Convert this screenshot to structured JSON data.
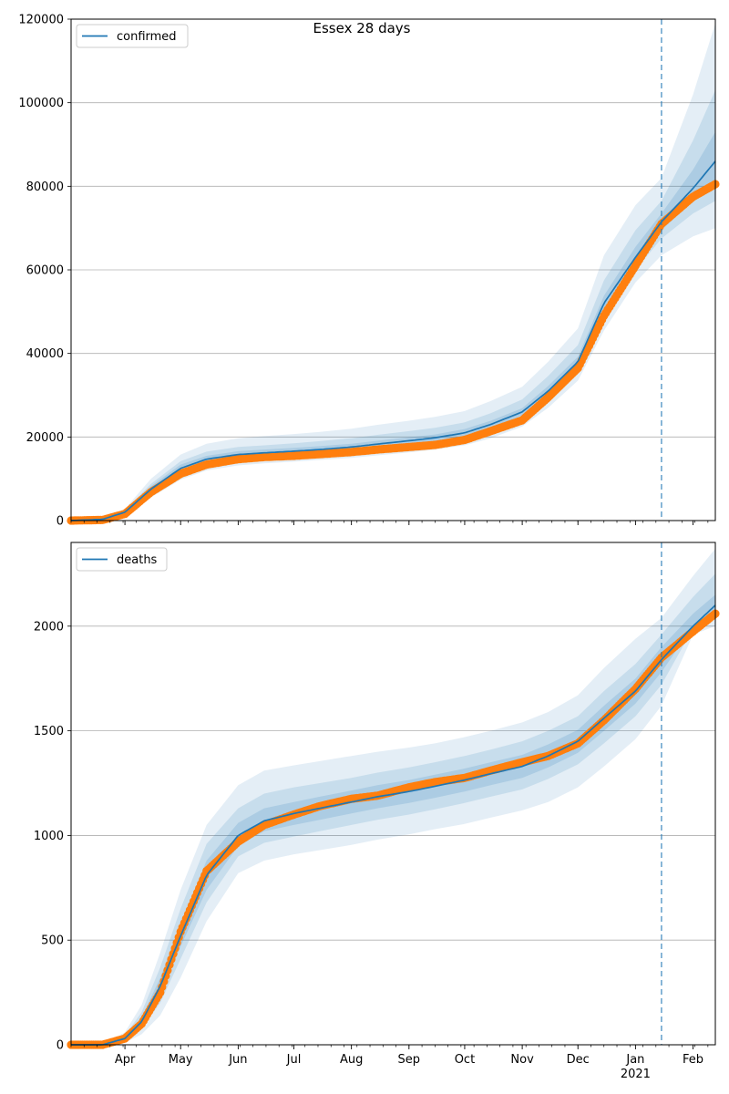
{
  "title": "Essex 28 days",
  "colors": {
    "model": "#1f77b4",
    "observed": "#ff7f0e",
    "band": "#1f77b4",
    "grid": "#b0b0b0"
  },
  "chart_data": [
    {
      "type": "line",
      "legend": "confirmed",
      "legend_position": "top-left",
      "grid": "horizontal",
      "xlim": [
        "2020-03-03",
        "2021-02-13"
      ],
      "ylim": [
        0,
        120000
      ],
      "yticks": [
        "0",
        "20000",
        "40000",
        "60000",
        "80000",
        "100000",
        "120000"
      ],
      "forecast_start": "2021-01-15",
      "x": [
        "2020-03-03",
        "2020-03-20",
        "2020-04-01",
        "2020-04-15",
        "2020-05-01",
        "2020-05-15",
        "2020-06-01",
        "2020-06-15",
        "2020-07-01",
        "2020-07-15",
        "2020-08-01",
        "2020-08-15",
        "2020-09-01",
        "2020-09-15",
        "2020-10-01",
        "2020-10-15",
        "2020-11-01",
        "2020-11-15",
        "2020-12-01",
        "2020-12-15",
        "2021-01-01",
        "2021-01-15",
        "2021-02-01",
        "2021-02-13"
      ],
      "series": [
        {
          "name": "confirmed",
          "role": "model",
          "values": [
            0,
            300,
            2000,
            7500,
            12500,
            14700,
            15800,
            16200,
            16600,
            17000,
            17600,
            18300,
            19100,
            19800,
            21000,
            23000,
            26000,
            31000,
            38000,
            52000,
            63000,
            71500,
            79500,
            86000
          ]
        },
        {
          "role": "observed",
          "values": [
            0,
            150,
            1600,
            6800,
            11200,
            13400,
            14700,
            15200,
            15500,
            15900,
            16400,
            17000,
            17600,
            18100,
            19300,
            21400,
            24000,
            29500,
            36500,
            49000,
            61000,
            71000,
            77500,
            80500
          ]
        }
      ],
      "bands": [
        {
          "level": "outer",
          "lower": [
            0,
            200,
            1400,
            5500,
            9800,
            12000,
            13200,
            13700,
            14100,
            14500,
            15000,
            15600,
            16300,
            17000,
            18000,
            19700,
            22500,
            27000,
            33500,
            45500,
            57000,
            63500,
            68000,
            70000
          ],
          "upper": [
            0,
            500,
            2800,
            10000,
            15800,
            18400,
            19700,
            20200,
            20700,
            21200,
            22000,
            22900,
            23900,
            24800,
            26200,
            28600,
            32000,
            38000,
            46000,
            63500,
            75500,
            82000,
            102000,
            119000
          ]
        },
        {
          "level": "middle",
          "lower": [
            0,
            250,
            1700,
            6500,
            11000,
            13200,
            14400,
            14900,
            15300,
            15700,
            16300,
            16900,
            17700,
            18400,
            19500,
            21300,
            24300,
            29000,
            35800,
            49000,
            60000,
            67500,
            73500,
            76500
          ],
          "upper": [
            0,
            420,
            2400,
            8800,
            14200,
            16500,
            17600,
            18000,
            18500,
            19000,
            19700,
            20500,
            21400,
            22200,
            23500,
            25700,
            29000,
            34600,
            42000,
            57500,
            69500,
            76500,
            91000,
            103000
          ]
        },
        {
          "level": "inner",
          "lower": [
            0,
            280,
            1850,
            7000,
            11800,
            14000,
            15100,
            15500,
            15900,
            16300,
            16900,
            17600,
            18400,
            19100,
            20200,
            22200,
            25200,
            30000,
            37000,
            50500,
            61500,
            69500,
            76500,
            80000
          ],
          "upper": [
            0,
            350,
            2200,
            8200,
            13400,
            15500,
            16600,
            17000,
            17400,
            17800,
            18400,
            19100,
            19900,
            20600,
            21900,
            23900,
            26900,
            32200,
            39200,
            53800,
            65500,
            73500,
            84000,
            93000
          ]
        }
      ]
    },
    {
      "type": "line",
      "legend": "deaths",
      "legend_position": "top-left",
      "grid": "horizontal",
      "xlim": [
        "2020-03-03",
        "2021-02-13"
      ],
      "ylim": [
        0,
        2400
      ],
      "yticks": [
        "0",
        "500",
        "1000",
        "1500",
        "2000"
      ],
      "forecast_start": "2021-01-15",
      "x": [
        "2020-03-03",
        "2020-03-20",
        "2020-04-01",
        "2020-04-10",
        "2020-04-20",
        "2020-05-01",
        "2020-05-15",
        "2020-06-01",
        "2020-06-15",
        "2020-07-01",
        "2020-07-15",
        "2020-08-01",
        "2020-08-15",
        "2020-09-01",
        "2020-09-15",
        "2020-10-01",
        "2020-10-15",
        "2020-11-01",
        "2020-11-15",
        "2020-12-01",
        "2020-12-15",
        "2021-01-01",
        "2021-01-15",
        "2021-02-01",
        "2021-02-13"
      ],
      "series": [
        {
          "name": "deaths",
          "role": "model",
          "values": [
            0,
            0,
            30,
            110,
            280,
            520,
            810,
            1000,
            1070,
            1105,
            1130,
            1160,
            1185,
            1210,
            1235,
            1265,
            1295,
            1330,
            1380,
            1450,
            1560,
            1690,
            1840,
            2000,
            2100
          ]
        },
        {
          "role": "observed",
          "values": [
            0,
            0,
            30,
            100,
            250,
            540,
            830,
            970,
            1050,
            1100,
            1140,
            1175,
            1190,
            1230,
            1255,
            1275,
            1310,
            1350,
            1380,
            1440,
            1550,
            1700,
            1850,
            1975,
            2060
          ]
        }
      ],
      "bands": [
        {
          "level": "outer",
          "lower": [
            0,
            0,
            10,
            50,
            140,
            320,
            590,
            820,
            880,
            910,
            930,
            955,
            980,
            1005,
            1030,
            1055,
            1085,
            1120,
            1160,
            1230,
            1330,
            1460,
            1620,
            1960,
            2000
          ],
          "upper": [
            0,
            0,
            60,
            190,
            440,
            740,
            1050,
            1240,
            1310,
            1335,
            1355,
            1380,
            1400,
            1420,
            1440,
            1470,
            1500,
            1540,
            1590,
            1670,
            1800,
            1940,
            2040,
            2240,
            2370
          ]
        },
        {
          "level": "middle",
          "lower": [
            0,
            0,
            15,
            75,
            200,
            410,
            680,
            900,
            965,
            995,
            1020,
            1050,
            1075,
            1100,
            1125,
            1155,
            1185,
            1220,
            1270,
            1340,
            1440,
            1570,
            1720,
            1990,
            2040
          ],
          "upper": [
            0,
            0,
            45,
            155,
            370,
            650,
            960,
            1130,
            1200,
            1230,
            1250,
            1275,
            1300,
            1325,
            1350,
            1380,
            1410,
            1450,
            1500,
            1570,
            1690,
            1820,
            1960,
            2140,
            2250
          ]
        },
        {
          "level": "inner",
          "lower": [
            0,
            0,
            20,
            95,
            240,
            470,
            740,
            950,
            1020,
            1050,
            1075,
            1105,
            1130,
            1155,
            1180,
            1210,
            1240,
            1275,
            1325,
            1395,
            1500,
            1630,
            1780,
            2000,
            2070
          ],
          "upper": [
            0,
            0,
            38,
            130,
            320,
            580,
            880,
            1060,
            1130,
            1160,
            1185,
            1215,
            1240,
            1265,
            1290,
            1320,
            1350,
            1385,
            1435,
            1505,
            1620,
            1750,
            1900,
            2060,
            2150
          ]
        }
      ]
    }
  ],
  "x_axis": {
    "month_ticks": [
      {
        "date": "2020-04-01",
        "label": "Apr"
      },
      {
        "date": "2020-05-01",
        "label": "May"
      },
      {
        "date": "2020-06-01",
        "label": "Jun"
      },
      {
        "date": "2020-07-01",
        "label": "Jul"
      },
      {
        "date": "2020-08-01",
        "label": "Aug"
      },
      {
        "date": "2020-09-01",
        "label": "Sep"
      },
      {
        "date": "2020-10-01",
        "label": "Oct"
      },
      {
        "date": "2020-11-01",
        "label": "Nov"
      },
      {
        "date": "2020-12-01",
        "label": "Dec"
      },
      {
        "date": "2021-01-01",
        "label": "Jan"
      },
      {
        "date": "2021-02-01",
        "label": "Feb"
      }
    ],
    "year_label": "2021"
  }
}
